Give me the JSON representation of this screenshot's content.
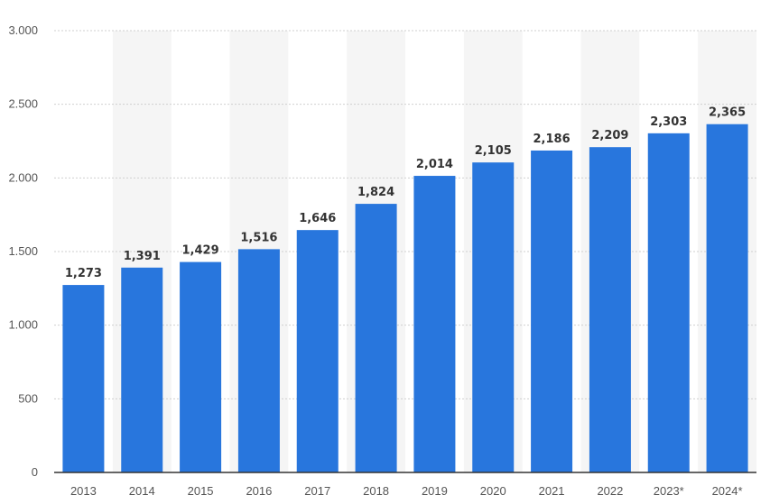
{
  "chart_data": {
    "type": "bar",
    "title": "",
    "xlabel": "",
    "ylabel": "",
    "categories": [
      "2013",
      "2014",
      "2015",
      "2016",
      "2017",
      "2018",
      "2019",
      "2020",
      "2021",
      "2022",
      "2023*",
      "2024*"
    ],
    "values": [
      1273,
      1391,
      1429,
      1516,
      1646,
      1824,
      2014,
      2105,
      2186,
      2209,
      2303,
      2365
    ],
    "value_labels": [
      "1,273",
      "1,391",
      "1,429",
      "1,516",
      "1,646",
      "1,824",
      "2,014",
      "2,105",
      "2,186",
      "2,209",
      "2,303",
      "2,365"
    ],
    "y_ticks": [
      0,
      500,
      1000,
      1500,
      2000,
      2500,
      3000
    ],
    "y_tick_labels": [
      "0",
      "500",
      "1.000",
      "1.500",
      "2.000",
      "2.500",
      "3.000"
    ],
    "ylim": [
      0,
      3000
    ],
    "grid": true,
    "legend": "none",
    "colors": {
      "bar": "#2876dd",
      "alt_band": "#f5f5f5",
      "grid": "#cfcfcf",
      "axis": "#333333"
    }
  }
}
